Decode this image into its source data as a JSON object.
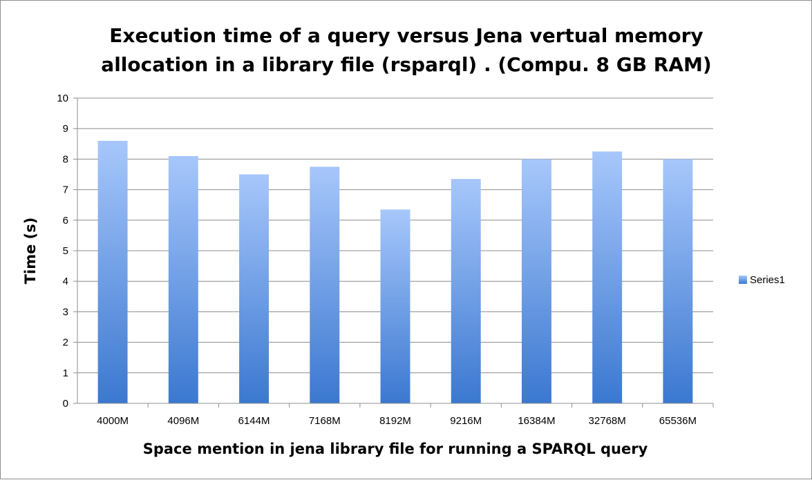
{
  "chart_data": {
    "type": "bar",
    "title_lines": [
      "Execution time of a query versus Jena vertual memory",
      "allocation in a library file (rsparql) . (Compu. 8 GB RAM)"
    ],
    "xlabel": "Space mention in jena library file for running a SPARQL query",
    "ylabel": "Time (s)",
    "categories": [
      "4000M",
      "4096M",
      "6144M",
      "7168M",
      "8192M",
      "9216M",
      "16384M",
      "32768M",
      "65536M"
    ],
    "series": [
      {
        "name": "Series1",
        "values": [
          8.6,
          8.1,
          7.5,
          7.75,
          6.35,
          7.35,
          8.0,
          8.25,
          8.0
        ]
      }
    ],
    "ylim": [
      0,
      10
    ],
    "yticks": [
      "0",
      "1",
      "2",
      "3",
      "4",
      "5",
      "6",
      "7",
      "8",
      "9",
      "10"
    ],
    "grid": true,
    "legend_position": "right",
    "colors": {
      "bar_top": "#a7c7fb",
      "bar_bottom": "#3b78d0",
      "grid": "#8c8c8c",
      "axis": "#8c8c8c"
    }
  }
}
